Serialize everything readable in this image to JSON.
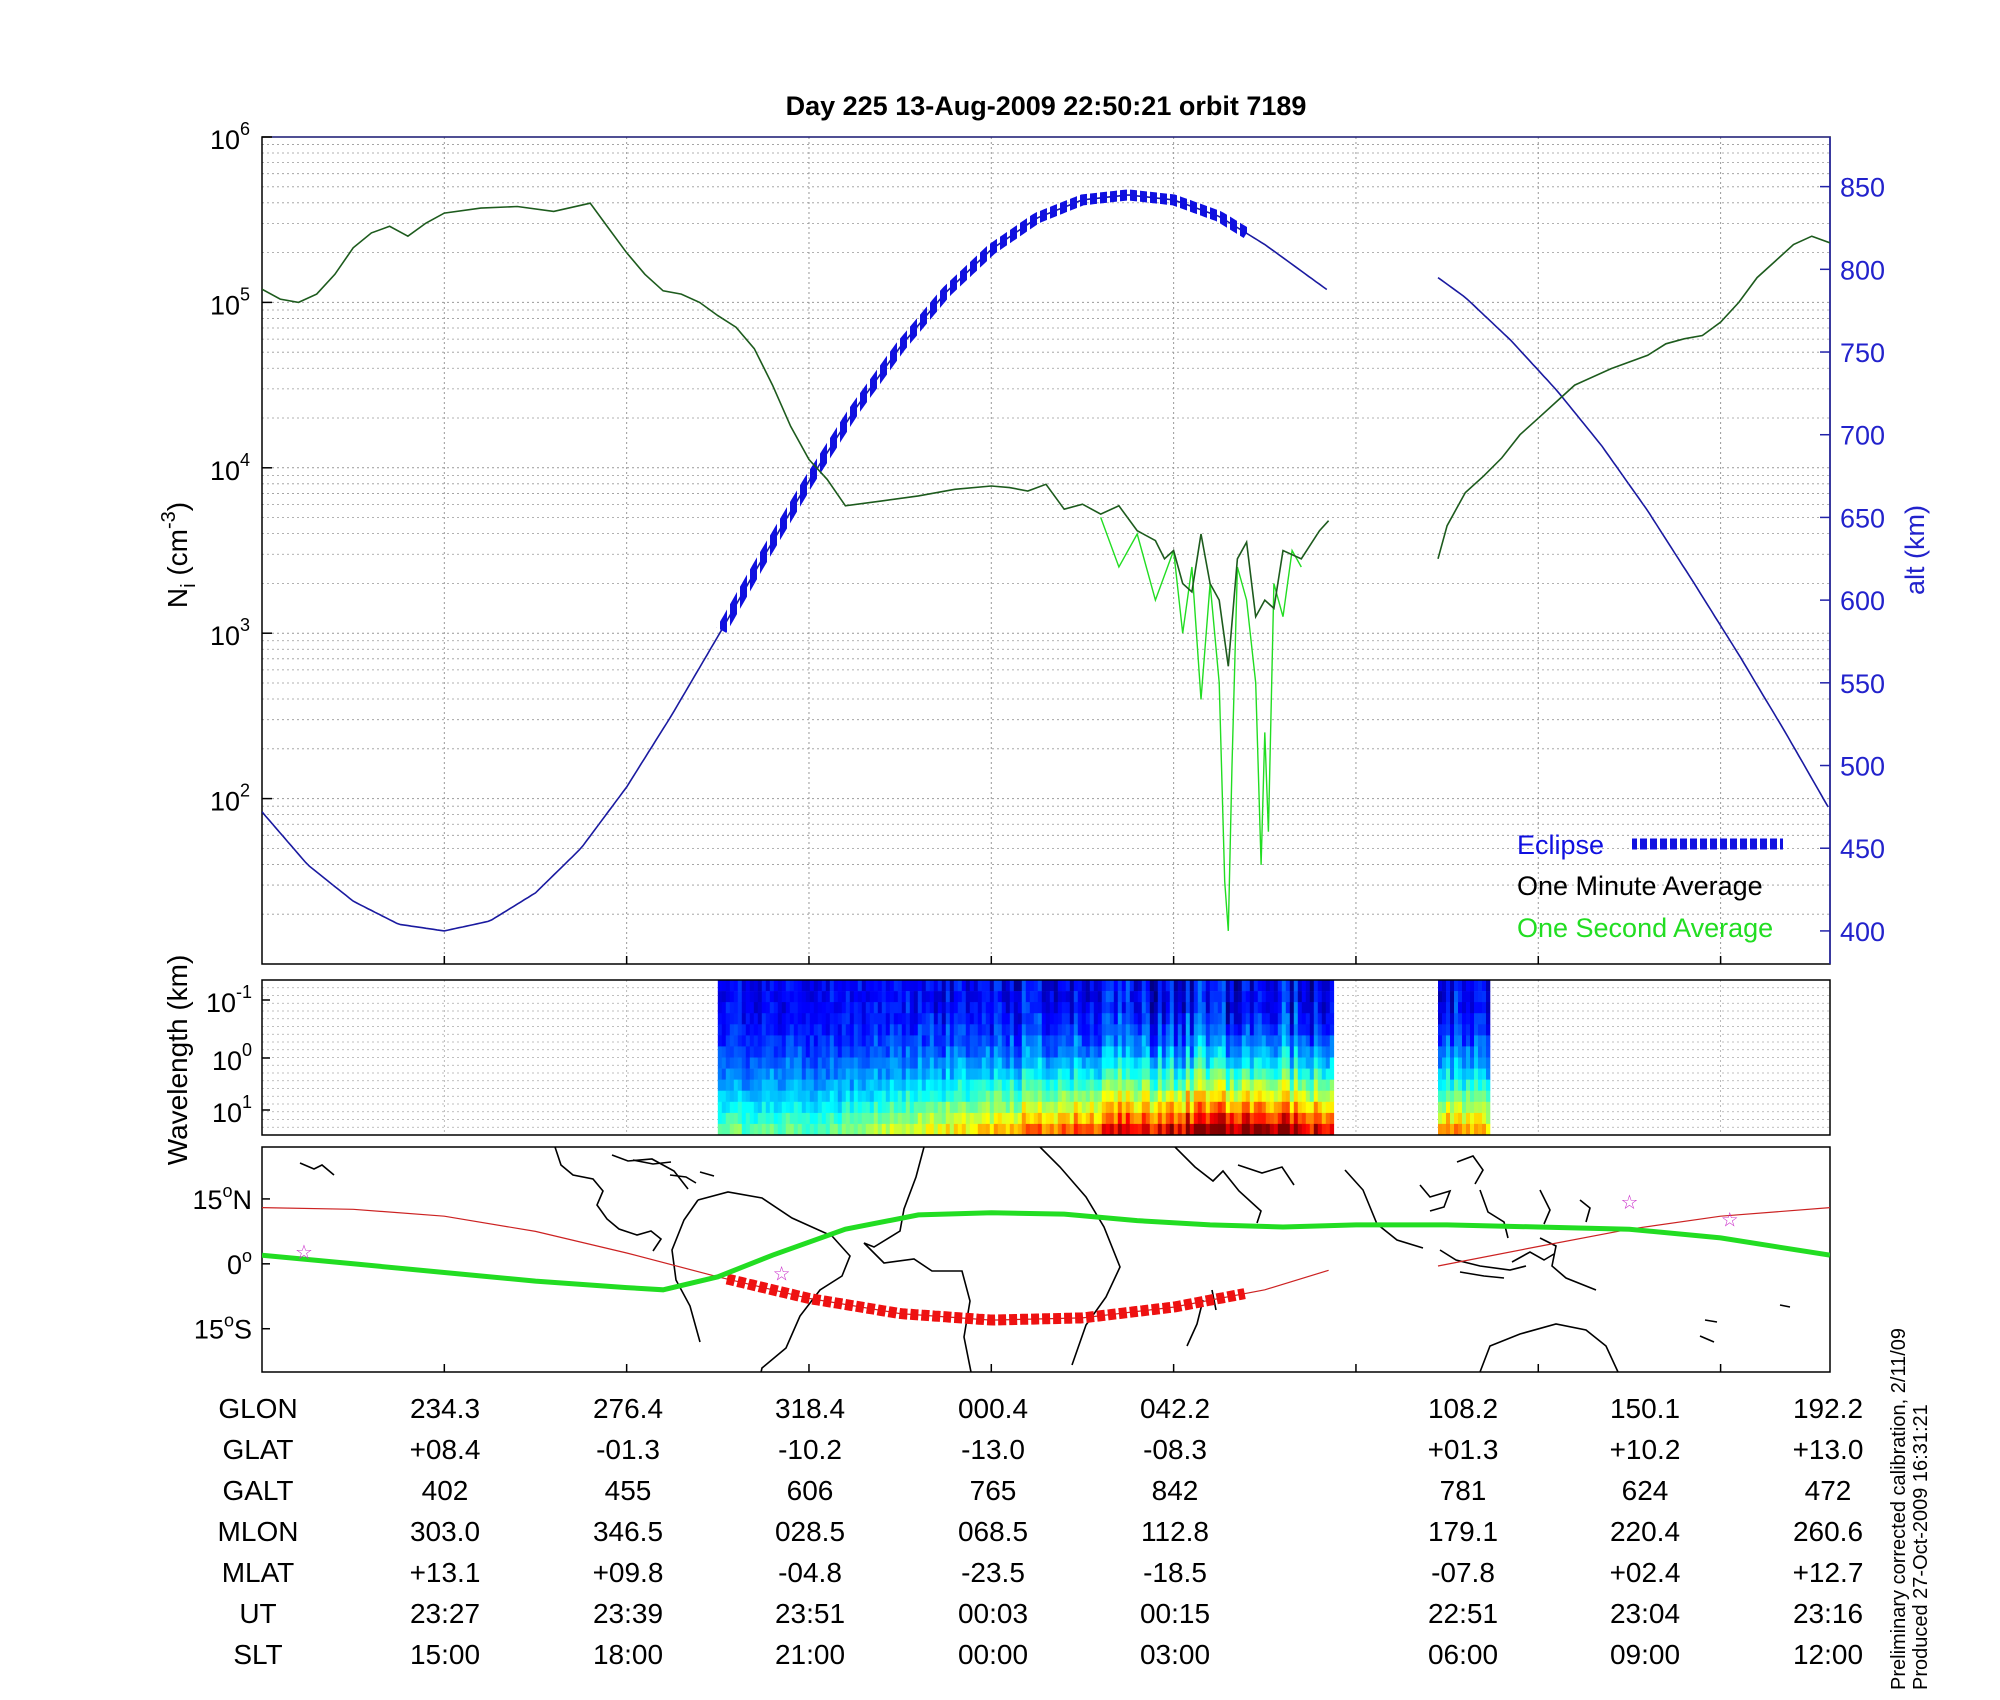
{
  "chart_data": [
    {
      "type": "line",
      "title": "Day 225  13-Aug-2009 22:50:21   orbit 7189",
      "ylabel": "N_i (cm^-3)",
      "ylabel_main": "N",
      "ylabel_sub": "i",
      "ylabel_unit": " (cm",
      "ylabel_exp": "-3",
      "ylabel_close": ")",
      "yscale": "log",
      "ylim_exp": [
        1,
        6
      ],
      "yticks": [
        {
          "base": "10",
          "exp": "6",
          "exp_value": 6
        },
        {
          "base": "10",
          "exp": "5",
          "exp_value": 5
        },
        {
          "base": "10",
          "exp": "4",
          "exp_value": 4
        },
        {
          "base": "10",
          "exp": "3",
          "exp_value": 3
        },
        {
          "base": "10",
          "exp": "2",
          "exp_value": 2
        }
      ],
      "y2label": "alt (km)",
      "y2lim": [
        380,
        880
      ],
      "y2ticks": [
        850,
        800,
        750,
        700,
        650,
        600,
        550,
        500,
        450,
        400
      ],
      "xlim": [
        0,
        8.6
      ],
      "gap": [
        5.85,
        6.45
      ],
      "legend": {
        "placement": "bottom-right",
        "entries": [
          {
            "label": "Eclipse",
            "color": "#1010e0"
          },
          {
            "label": "One Minute Average",
            "color": "#000000"
          },
          {
            "label": "One Second Average",
            "color": "#22dd22"
          }
        ]
      },
      "series": [
        {
          "name": "altitude (km)",
          "axis": "right",
          "x": [
            0,
            0.25,
            0.5,
            0.75,
            1.0,
            1.25,
            1.5,
            1.75,
            2.0,
            2.25,
            2.5,
            2.75,
            3.0,
            3.25,
            3.5,
            3.75,
            4.0,
            4.25,
            4.5,
            4.75,
            5.0,
            5.25,
            5.5,
            5.75,
            5.85,
            6.45,
            6.6,
            6.85,
            7.1,
            7.35,
            7.6,
            7.85,
            8.1,
            8.35,
            8.6
          ],
          "values": [
            472,
            440,
            418,
            404,
            400,
            406,
            423,
            450,
            487,
            531,
            578,
            626,
            672,
            715,
            753,
            786,
            812,
            831,
            842,
            845,
            842,
            832,
            815,
            795,
            787,
            795,
            783,
            757,
            727,
            693,
            654,
            611,
            567,
            521,
            473
          ]
        },
        {
          "name": "eclipse",
          "color": "#1010e0",
          "x_range": [
            2.52,
            5.4
          ]
        },
        {
          "name": "One Minute Average",
          "color": "#000000",
          "x": [
            0,
            0.1,
            0.2,
            0.3,
            0.4,
            0.5,
            0.6,
            0.7,
            0.8,
            0.9,
            1.0,
            1.2,
            1.4,
            1.6,
            1.8,
            1.9,
            2.0,
            2.1,
            2.2,
            2.3,
            2.4,
            2.5,
            2.6,
            2.7,
            2.8,
            2.9,
            3.0,
            3.1,
            3.2,
            3.4,
            3.6,
            3.8,
            4.0,
            4.1,
            4.2,
            4.3,
            4.4,
            4.5,
            4.6,
            4.7,
            4.8,
            4.9,
            4.95,
            5.0,
            5.05,
            5.1,
            5.15,
            5.2,
            5.25,
            5.3,
            5.35,
            5.4,
            5.45,
            5.5,
            5.55,
            5.6,
            5.7,
            5.8,
            5.85,
            6.45,
            6.5,
            6.6,
            6.7,
            6.8,
            6.9,
            7.0,
            7.1,
            7.2,
            7.4,
            7.6,
            7.7,
            7.8,
            7.9,
            8.0,
            8.1,
            8.2,
            8.3,
            8.4,
            8.5,
            8.6
          ],
          "values": [
            5.08,
            5.02,
            5.0,
            5.05,
            5.17,
            5.33,
            5.42,
            5.46,
            5.4,
            5.48,
            5.54,
            5.57,
            5.58,
            5.55,
            5.6,
            5.45,
            5.3,
            5.17,
            5.07,
            5.05,
            5.0,
            4.92,
            4.85,
            4.72,
            4.5,
            4.25,
            4.05,
            3.93,
            3.77,
            3.8,
            3.83,
            3.87,
            3.89,
            3.88,
            3.86,
            3.9,
            3.75,
            3.78,
            3.72,
            3.77,
            3.62,
            3.56,
            3.45,
            3.5,
            3.3,
            3.25,
            3.6,
            3.3,
            3.2,
            2.8,
            3.45,
            3.55,
            3.1,
            3.2,
            3.15,
            3.5,
            3.45,
            3.62,
            3.68,
            3.45,
            3.65,
            3.85,
            3.95,
            4.06,
            4.2,
            4.3,
            4.4,
            4.5,
            4.6,
            4.68,
            4.75,
            4.78,
            4.8,
            4.88,
            5.0,
            5.15,
            5.25,
            5.35,
            5.4,
            5.36
          ]
        },
        {
          "name": "One Second Average",
          "color": "#22dd22",
          "x": [
            4.6,
            4.7,
            4.8,
            4.9,
            5.0,
            5.05,
            5.1,
            5.15,
            5.2,
            5.25,
            5.28,
            5.3,
            5.32,
            5.35,
            5.4,
            5.45,
            5.48,
            5.5,
            5.52,
            5.55,
            5.6,
            5.65,
            5.7
          ],
          "values": [
            3.7,
            3.4,
            3.6,
            3.2,
            3.5,
            3.0,
            3.4,
            2.6,
            3.3,
            2.7,
            1.5,
            1.2,
            2.2,
            3.4,
            3.2,
            2.7,
            1.6,
            2.4,
            1.8,
            3.3,
            3.1,
            3.5,
            3.4
          ]
        }
      ]
    },
    {
      "type": "heatmap",
      "ylabel": "Wavelength (km)",
      "yscale": "log",
      "yticks": [
        {
          "base": "10",
          "exp": "-1"
        },
        {
          "base": "10",
          "exp": "0"
        },
        {
          "base": "10",
          "exp": "1"
        }
      ],
      "x_segments": [
        [
          2.5,
          5.87
        ],
        [
          6.45,
          6.72
        ]
      ],
      "intensity_peak_x": 5.35,
      "colormap": "jet"
    },
    {
      "type": "scatter",
      "ylabel": "",
      "ytick_labels": [
        {
          "text": "15",
          "sup": "o",
          "hem": "N",
          "lat": 15
        },
        {
          "text": "0",
          "sup": "o",
          "hem": "",
          "lat": 0
        },
        {
          "text": "15",
          "sup": "o",
          "hem": "S",
          "lat": -15
        }
      ],
      "ylim": [
        -25,
        27
      ],
      "satellite_track": {
        "color": "#ff0000",
        "x": [
          0,
          0.5,
          1.0,
          1.5,
          2.0,
          2.5,
          3.0,
          3.5,
          4.0,
          4.5,
          5.0,
          5.5,
          5.85
        ],
        "lat": [
          13,
          12.6,
          11,
          7.5,
          2.5,
          -3,
          -8,
          -11.5,
          -13,
          -12.5,
          -10,
          -6,
          -1.5
        ],
        "x2": [
          6.45,
          7.0,
          7.5,
          8.0,
          8.6
        ],
        "lat2": [
          -0.5,
          4,
          8,
          11,
          13
        ]
      },
      "eclipse_track_x_range": [
        2.55,
        5.4
      ],
      "magnetic_equator": {
        "color": "#22dd22",
        "x": [
          0,
          0.5,
          1.0,
          1.5,
          2.0,
          2.2,
          2.5,
          2.8,
          3.2,
          3.6,
          4.0,
          4.4,
          4.8,
          5.2,
          5.6,
          6.0,
          6.5,
          7.0,
          7.5,
          8.0,
          8.6
        ],
        "lat": [
          2,
          0,
          -2,
          -4,
          -5.5,
          -6,
          -3,
          2,
          8,
          11.3,
          11.8,
          11.5,
          10,
          9,
          8.5,
          9,
          9,
          8.5,
          8,
          6,
          2
        ]
      },
      "stars_x": [
        0.23,
        2.85,
        7.5,
        8.05
      ],
      "stars_lat": [
        3,
        -2,
        14.5,
        10.5
      ]
    }
  ],
  "table": {
    "row_labels": [
      "GLON",
      "GLAT",
      "GALT",
      "MLON",
      "MLAT",
      "UT",
      "SLT"
    ],
    "columns": [
      [
        "234.3",
        "+08.4",
        "402",
        "303.0",
        "+13.1",
        "23:27",
        "15:00"
      ],
      [
        "276.4",
        "-01.3",
        "455",
        "346.5",
        "+09.8",
        "23:39",
        "18:00"
      ],
      [
        "318.4",
        "-10.2",
        "606",
        "028.5",
        "-04.8",
        "23:51",
        "21:00"
      ],
      [
        "000.4",
        "-13.0",
        "765",
        "068.5",
        "-23.5",
        "00:03",
        "00:00"
      ],
      [
        "042.2",
        "-08.3",
        "842",
        "112.8",
        "-18.5",
        "00:15",
        "03:00"
      ],
      [
        "108.2",
        "+01.3",
        "781",
        "179.1",
        "-07.8",
        "22:51",
        "06:00"
      ],
      [
        "150.1",
        "+10.2",
        "624",
        "220.4",
        "+02.4",
        "23:04",
        "09:00"
      ],
      [
        "192.2",
        "+13.0",
        "472",
        "260.6",
        "+12.7",
        "23:16",
        "12:00"
      ]
    ]
  },
  "side_notes": [
    "Preliminary corrected calibration, 2/11/09",
    "Produced 27-Oct-2009 16:31:21"
  ]
}
